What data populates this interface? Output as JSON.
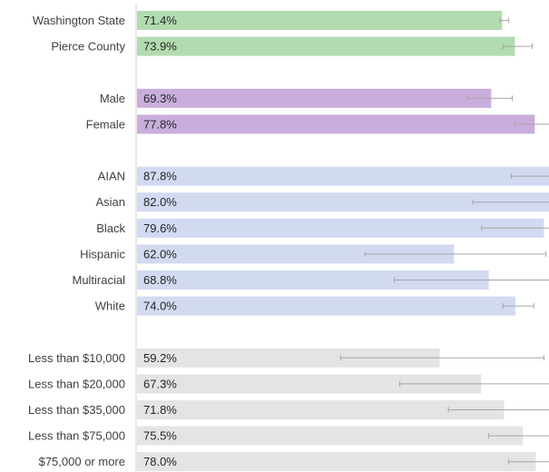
{
  "chart_data": {
    "type": "bar",
    "orientation": "horizontal",
    "title": "",
    "xlabel": "",
    "ylabel": "",
    "xlim": [
      0,
      100
    ],
    "grid": false,
    "legend": "none",
    "error_bars": true,
    "groups": [
      {
        "color": "#b3dbb0",
        "items": [
          {
            "label": "Washington State",
            "value": 71.4,
            "value_label": "71.4%",
            "ci": [
              71.0,
              72.7
            ]
          },
          {
            "label": "Pierce County",
            "value": 73.9,
            "value_label": "73.9%",
            "ci": [
              71.6,
              77.3
            ]
          }
        ]
      },
      {
        "color": "#c9aedd",
        "items": [
          {
            "label": "Male",
            "value": 69.3,
            "value_label": "69.3%",
            "ci": [
              64.6,
              73.4
            ]
          },
          {
            "label": "Female",
            "value": 77.8,
            "value_label": "77.8%",
            "ci": [
              73.9,
              81.5
            ]
          }
        ]
      },
      {
        "color": "#d2daf2",
        "items": [
          {
            "label": "AIAN",
            "value": 87.8,
            "value_label": "87.8%",
            "ci": [
              73.2,
              99.4
            ]
          },
          {
            "label": "Asian",
            "value": 82.0,
            "value_label": "82.0%",
            "ci": [
              65.7,
              98.7
            ]
          },
          {
            "label": "Black",
            "value": 79.6,
            "value_label": "79.6%",
            "ci": [
              67.4,
              90.3
            ]
          },
          {
            "label": "Hispanic",
            "value": 62.0,
            "value_label": "62.0%",
            "ci": [
              44.6,
              80.0
            ]
          },
          {
            "label": "Multiracial",
            "value": 68.8,
            "value_label": "68.8%",
            "ci": [
              50.3,
              88.4
            ]
          },
          {
            "label": "White",
            "value": 74.0,
            "value_label": "74.0%",
            "ci": [
              71.6,
              77.6
            ]
          }
        ]
      },
      {
        "color": "#e4e4e4",
        "items": [
          {
            "label": "Less than $10,000",
            "value": 59.2,
            "value_label": "59.2%",
            "ci": [
              39.8,
              79.6
            ]
          },
          {
            "label": "Less than $20,000",
            "value": 67.3,
            "value_label": "67.3%",
            "ci": [
              51.4,
              84.4
            ]
          },
          {
            "label": "Less than $35,000",
            "value": 71.8,
            "value_label": "71.8%",
            "ci": [
              60.9,
              84.2
            ]
          },
          {
            "label": "Less than $75,000",
            "value": 75.5,
            "value_label": "75.5%",
            "ci": [
              68.8,
              82.8
            ]
          },
          {
            "label": "$75,000 or more",
            "value": 78.0,
            "value_label": "78.0%",
            "ci": [
              72.7,
              83.9
            ]
          }
        ]
      }
    ]
  }
}
